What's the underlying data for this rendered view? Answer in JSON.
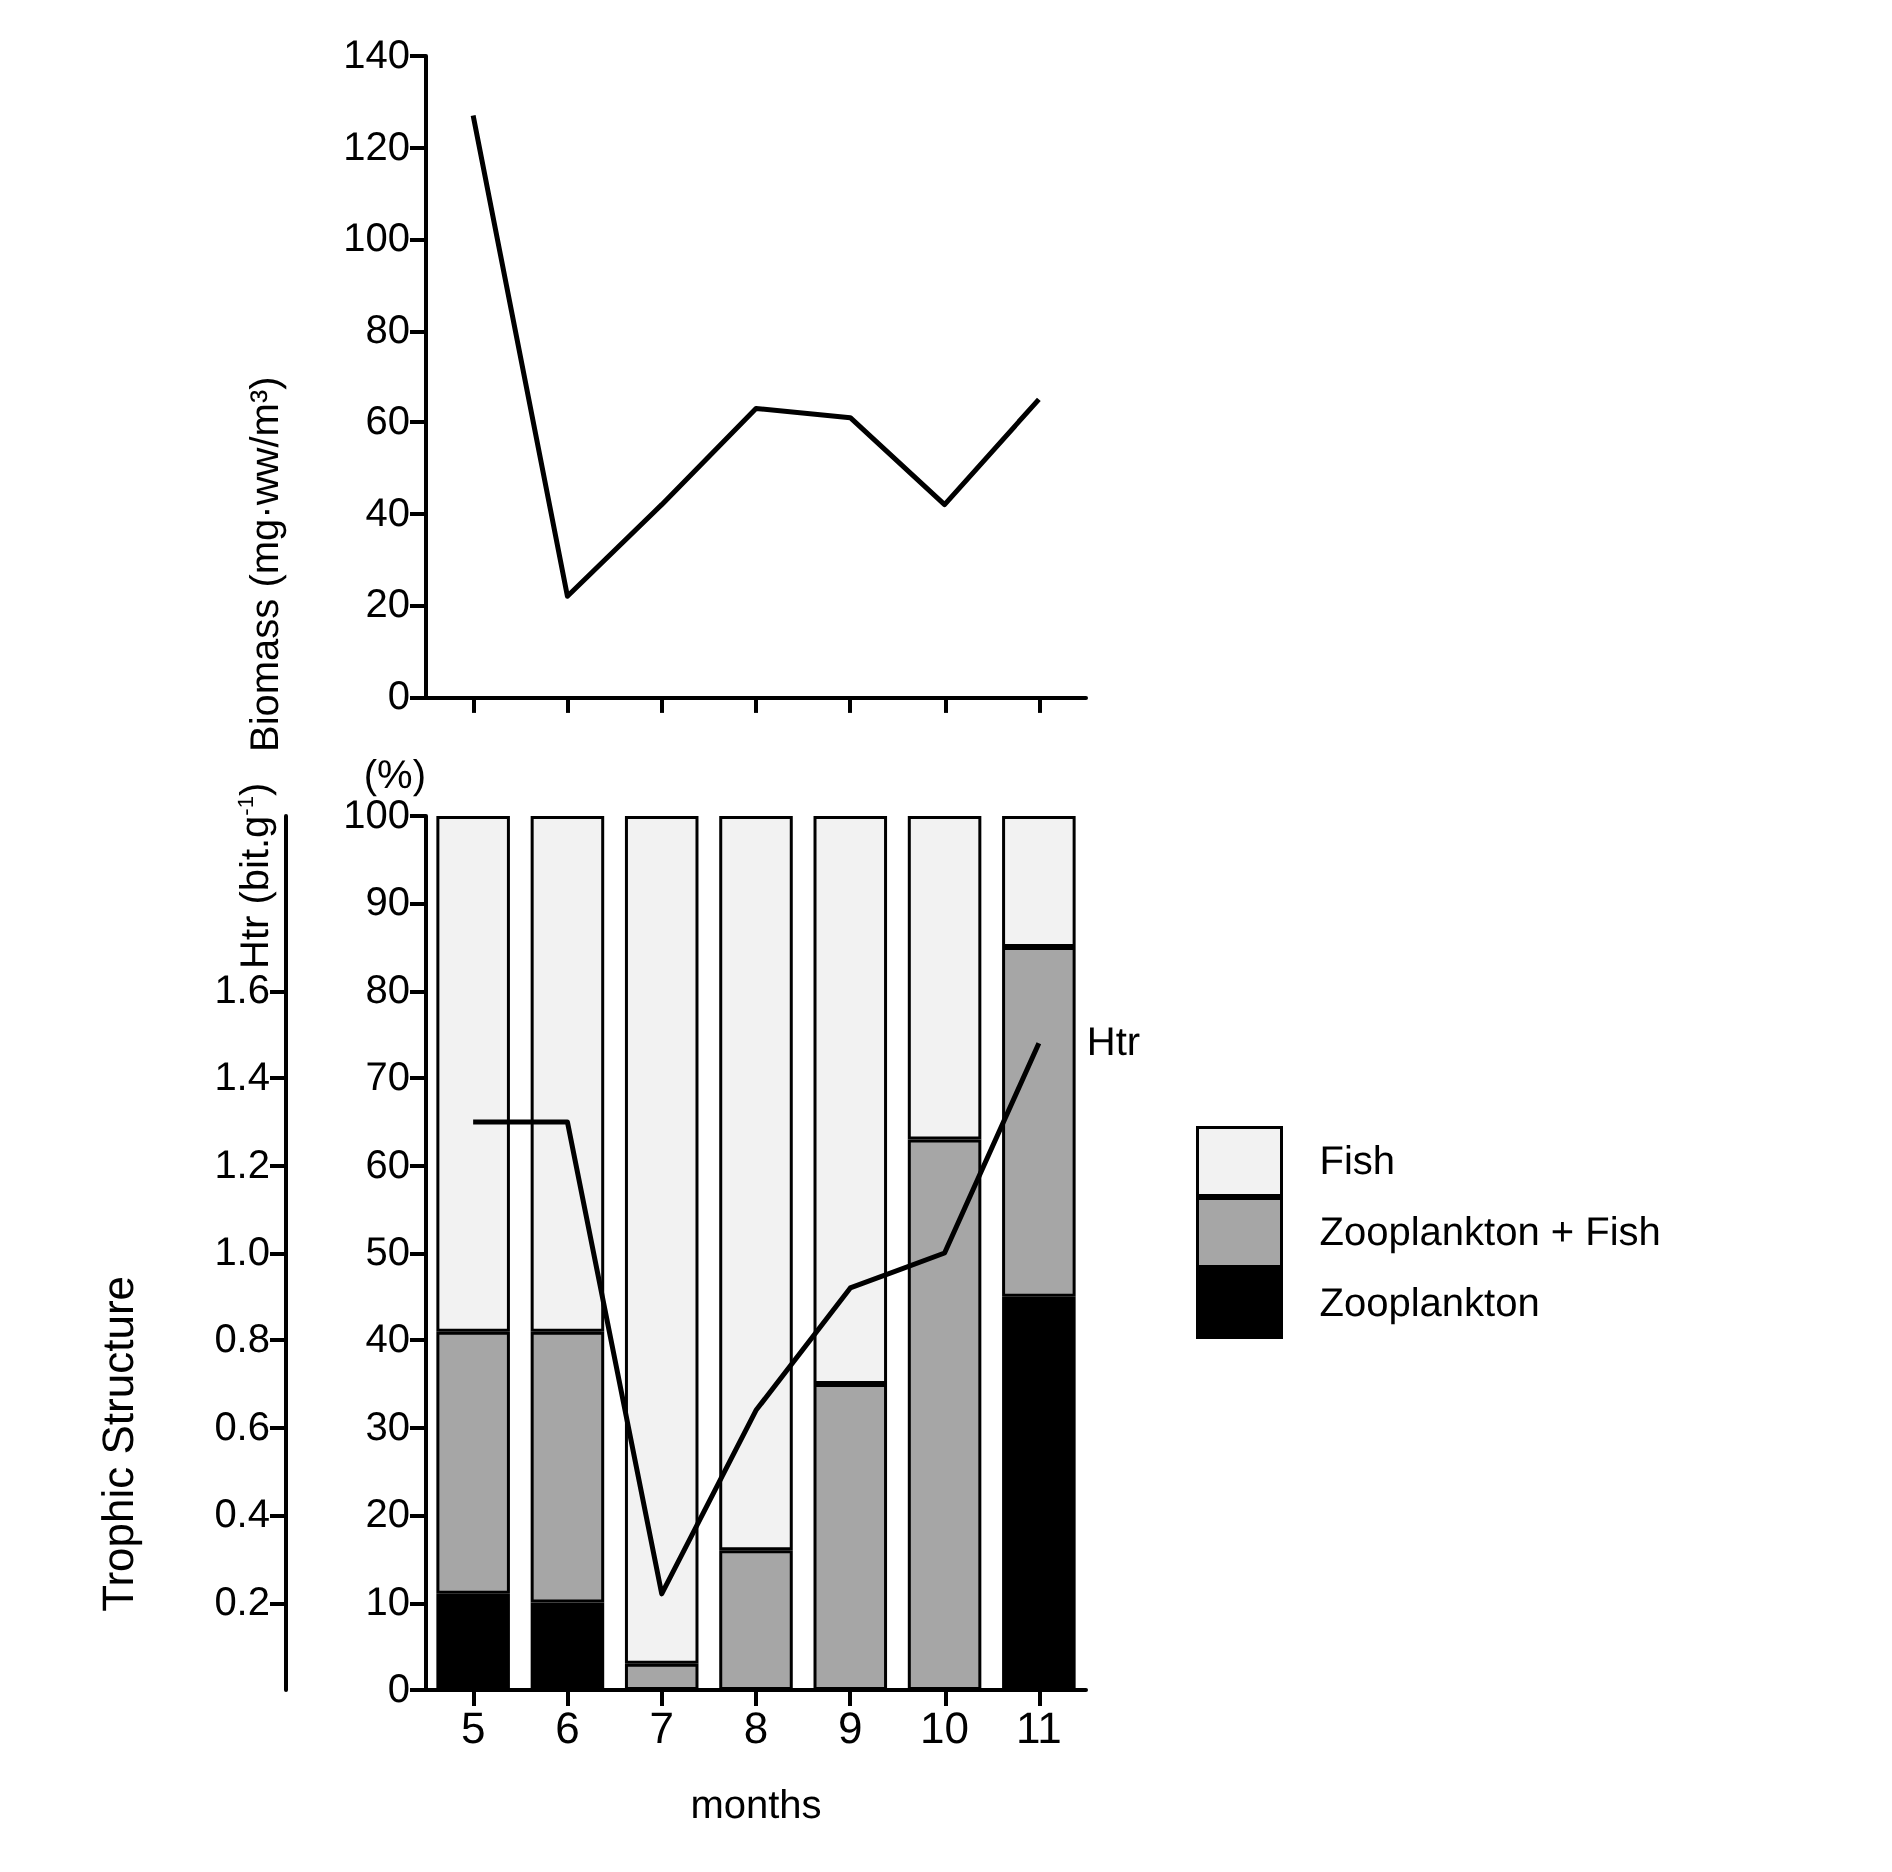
{
  "chart_data": [
    {
      "type": "line",
      "ylabel": "Biomass (mg·ww/m³)",
      "categories": [
        "5",
        "6",
        "7",
        "8",
        "9",
        "10",
        "11"
      ],
      "series": [
        {
          "color": "#000000",
          "values": [
            127,
            22,
            42,
            63,
            61,
            42,
            65
          ]
        }
      ],
      "ylim": [
        0,
        140
      ],
      "yticks": [
        0,
        20,
        40,
        60,
        80,
        100,
        120,
        140
      ],
      "tick_labels": "y",
      "grid": false,
      "legend": false,
      "marker": "none"
    },
    {
      "type": "bar",
      "stacked": true,
      "xlabel": "months",
      "ylabel": "(%)",
      "y2label": "Htr (bit.g$^{-1}$)",
      "annotations": [
        "Trophic Structure"
      ],
      "categories": [
        "5",
        "6",
        "7",
        "8",
        "9",
        "10",
        "11"
      ],
      "series": [
        {
          "name": "Zooplankton",
          "color": "#000000",
          "values": [
            11,
            10,
            0,
            0,
            0,
            0,
            45
          ]
        },
        {
          "name": "Zooplankton + Fish",
          "color": "#a6a6a6",
          "values": [
            30,
            31,
            3,
            16,
            35,
            63,
            40
          ]
        },
        {
          "name": "Fish",
          "color": "#f2f2f2",
          "values": [
            59,
            59,
            97,
            84,
            65,
            37,
            15
          ]
        },
        {
          "name": "Htr",
          "type": "line",
          "axis": "y2",
          "color": "#000000",
          "values": [
            1.3,
            1.3,
            0.22,
            0.64,
            0.92,
            1.0,
            1.48
          ]
        }
      ],
      "ylim": [
        0,
        100
      ],
      "yticks": [
        0,
        10,
        20,
        30,
        40,
        50,
        60,
        70,
        80,
        90,
        100
      ],
      "y2lim": [
        0,
        2
      ],
      "y2ticks": [
        0.2,
        0.4,
        0.6,
        0.8,
        {
          "value": 1.0,
          "label": "1.0"
        },
        1.2,
        1.4,
        1.6
      ],
      "grid": false,
      "legend": "right",
      "marker": "none"
    }
  ]
}
